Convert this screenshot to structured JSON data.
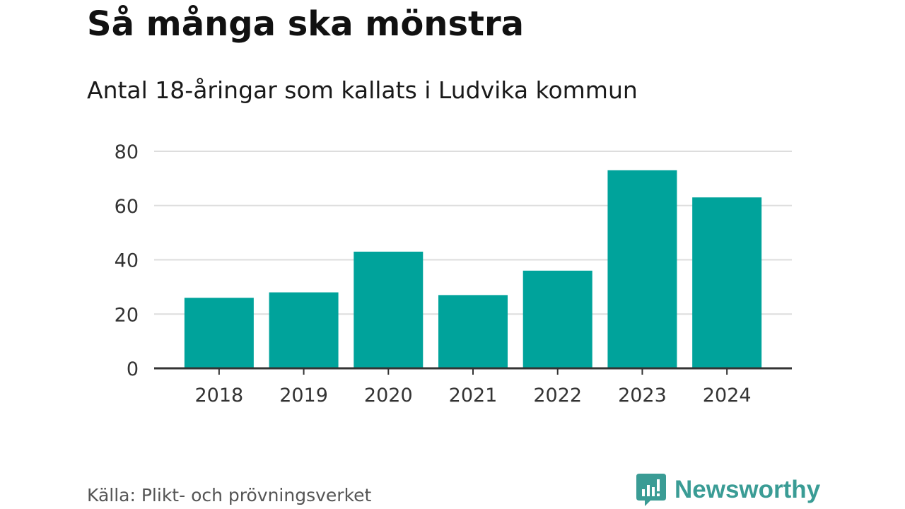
{
  "header": {
    "title": "Så många ska mönstra",
    "subtitle": "Antal 18-åringar som kallats i Ludvika kommun"
  },
  "footer": {
    "source": "Källa: Plikt- och prövningsverket",
    "brand": "Newsworthy"
  },
  "colors": {
    "bar": "#00a39b",
    "brand": "#3a9c95",
    "grid": "#dddddd",
    "axis": "#333333",
    "tick_text": "#333333"
  },
  "chart_data": {
    "type": "bar",
    "title": "Så många ska mönstra",
    "subtitle": "Antal 18-åringar som kallats i Ludvika kommun",
    "categories": [
      "2018",
      "2019",
      "2020",
      "2021",
      "2022",
      "2023",
      "2024"
    ],
    "values": [
      26,
      28,
      43,
      27,
      36,
      73,
      63
    ],
    "xlabel": "",
    "ylabel": "",
    "ylim": [
      0,
      80
    ],
    "yticks": [
      0,
      20,
      40,
      60,
      80
    ],
    "grid": true,
    "legend": "none"
  }
}
